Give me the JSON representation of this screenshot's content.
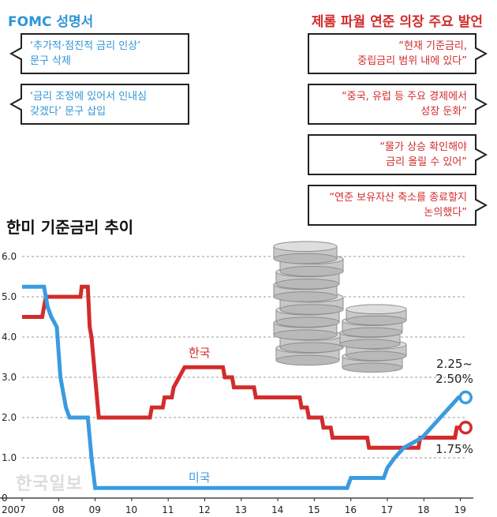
{
  "header": {
    "left_title": "FOMC 성명서",
    "right_title": "제롬 파월 연준 의장 주요 발언"
  },
  "fomc_statements": [
    [
      "‘추가적·점진적 금리 인상’",
      "문구 삭제"
    ],
    [
      "‘금리 조정에 있어서 인내심",
      "갖겠다’ 문구 삽입"
    ]
  ],
  "powell_remarks": [
    [
      "“현재 기준금리,",
      "중립금리 범위 내에 있다”"
    ],
    [
      "“중국, 유럽 등 주요 경제에서",
      "성장 둔화”"
    ],
    [
      "“물가 상승 확인해야",
      "금리 올릴 수 있어”"
    ],
    [
      "“연준 보유자산 축소를 종료할지",
      "논의했다”"
    ]
  ],
  "chart_title": "한미 기준금리 추이",
  "watermark": "한국일보",
  "colors": {
    "korea": "#d22c2c",
    "us": "#3a9be0",
    "grid": "#9a9a9a",
    "coins": "#bdbdbd"
  },
  "chart_data": {
    "type": "line",
    "title": "한미 기준금리 추이",
    "xlabel": "",
    "ylabel": "",
    "xlim": [
      2007,
      2019.1
    ],
    "ylim": [
      0,
      6.0
    ],
    "y_ticks": [
      0,
      1.0,
      2.0,
      3.0,
      4.0,
      5.0,
      6.0
    ],
    "y_tick_labels": [
      "0",
      "1.0",
      "2.0",
      "3.0",
      "4.0",
      "5.0",
      "6.0"
    ],
    "x_ticks": [
      2007,
      2008,
      2009,
      2010,
      2011,
      2012,
      2013,
      2014,
      2015,
      2016,
      2017,
      2018,
      2019
    ],
    "x_tick_labels": [
      "2007",
      "08",
      "09",
      "10",
      "11",
      "12",
      "13",
      "14",
      "15",
      "16",
      "17",
      "18",
      "19"
    ],
    "grid": "horizontal dashed",
    "series": [
      {
        "name": "한국",
        "color": "#d22c2c",
        "points": [
          [
            2007.0,
            4.5
          ],
          [
            2007.55,
            4.5
          ],
          [
            2007.6,
            4.75
          ],
          [
            2007.65,
            5.0
          ],
          [
            2008.6,
            5.0
          ],
          [
            2008.63,
            5.25
          ],
          [
            2008.8,
            5.25
          ],
          [
            2008.85,
            4.25
          ],
          [
            2008.9,
            4.0
          ],
          [
            2009.0,
            3.0
          ],
          [
            2009.1,
            2.0
          ],
          [
            2010.5,
            2.0
          ],
          [
            2010.55,
            2.25
          ],
          [
            2010.85,
            2.25
          ],
          [
            2010.9,
            2.5
          ],
          [
            2011.1,
            2.5
          ],
          [
            2011.15,
            2.75
          ],
          [
            2011.3,
            3.0
          ],
          [
            2011.45,
            3.25
          ],
          [
            2012.5,
            3.25
          ],
          [
            2012.55,
            3.0
          ],
          [
            2012.75,
            3.0
          ],
          [
            2012.8,
            2.75
          ],
          [
            2013.35,
            2.75
          ],
          [
            2013.4,
            2.5
          ],
          [
            2014.6,
            2.5
          ],
          [
            2014.65,
            2.25
          ],
          [
            2014.8,
            2.25
          ],
          [
            2014.85,
            2.0
          ],
          [
            2015.2,
            2.0
          ],
          [
            2015.25,
            1.75
          ],
          [
            2015.45,
            1.75
          ],
          [
            2015.5,
            1.5
          ],
          [
            2016.45,
            1.5
          ],
          [
            2016.5,
            1.25
          ],
          [
            2017.85,
            1.25
          ],
          [
            2017.9,
            1.5
          ],
          [
            2018.85,
            1.5
          ],
          [
            2018.9,
            1.75
          ],
          [
            2019.1,
            1.75
          ]
        ]
      },
      {
        "name": "미국",
        "color": "#3a9be0",
        "points": [
          [
            2007.0,
            5.25
          ],
          [
            2007.6,
            5.25
          ],
          [
            2007.7,
            4.75
          ],
          [
            2007.8,
            4.5
          ],
          [
            2007.95,
            4.25
          ],
          [
            2008.05,
            3.0
          ],
          [
            2008.2,
            2.25
          ],
          [
            2008.3,
            2.0
          ],
          [
            2008.8,
            2.0
          ],
          [
            2008.85,
            1.5
          ],
          [
            2008.9,
            1.0
          ],
          [
            2009.0,
            0.25
          ],
          [
            2015.9,
            0.25
          ],
          [
            2016.0,
            0.5
          ],
          [
            2016.9,
            0.5
          ],
          [
            2017.0,
            0.75
          ],
          [
            2017.2,
            1.0
          ],
          [
            2017.45,
            1.25
          ],
          [
            2017.95,
            1.5
          ],
          [
            2018.2,
            1.75
          ],
          [
            2018.45,
            2.0
          ],
          [
            2018.7,
            2.25
          ],
          [
            2018.95,
            2.5
          ],
          [
            2019.1,
            2.5
          ]
        ]
      }
    ],
    "annotations": [
      {
        "label": "한국",
        "series": "한국"
      },
      {
        "label": "미국",
        "series": "미국"
      },
      {
        "label": [
          "2.25~",
          "2.50%"
        ],
        "series": "미국"
      },
      {
        "label": "1.75%",
        "series": "한국"
      }
    ]
  }
}
